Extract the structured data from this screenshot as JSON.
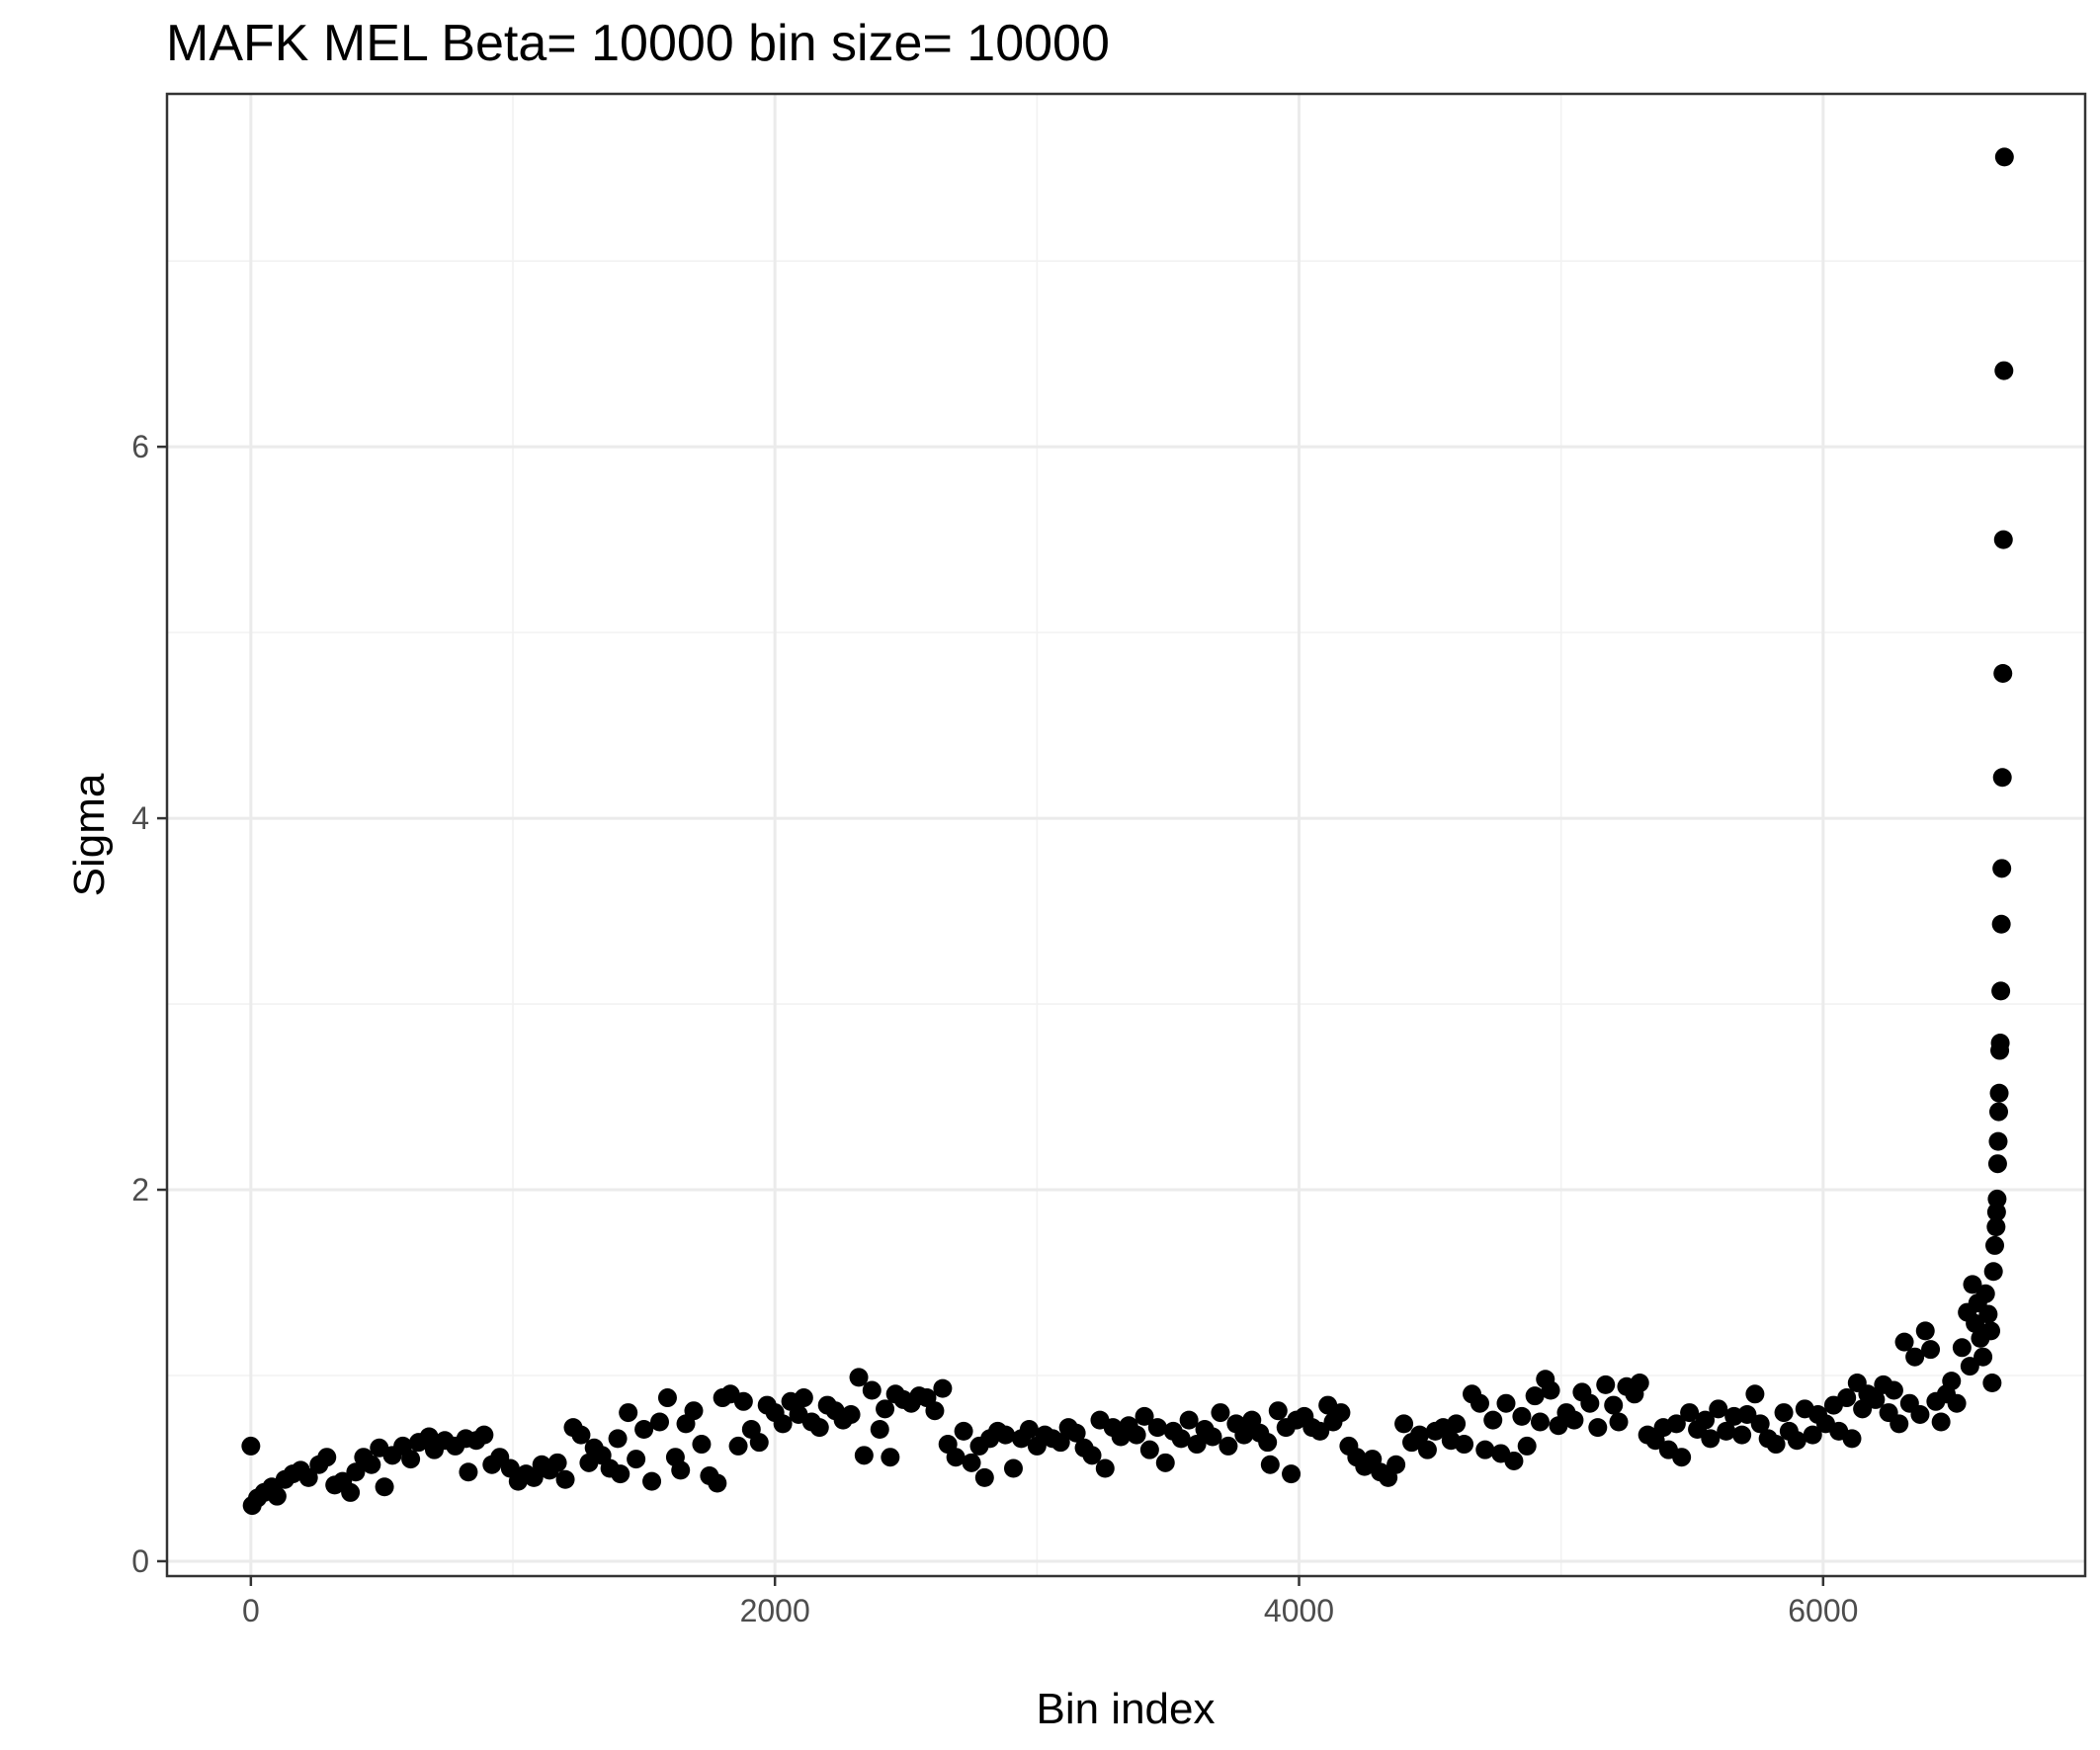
{
  "chart_data": {
    "type": "scatter",
    "title": "MAFK MEL  Beta=  10000  bin size=  10000",
    "xlabel": "Bin index",
    "ylabel": "Sigma",
    "xlim": [
      -320,
      7000
    ],
    "ylim": [
      -0.08,
      7.9
    ],
    "x_ticks": [
      0,
      2000,
      4000,
      6000
    ],
    "x_tick_labels": [
      "0",
      "2000",
      "4000",
      "6000"
    ],
    "y_ticks": [
      0,
      2,
      4,
      6
    ],
    "y_tick_labels": [
      "0",
      "2",
      "4",
      "6"
    ],
    "grid": true,
    "legend": "none",
    "point_color": "#000000",
    "series": [
      {
        "points": [
          [
            0,
            0.62
          ],
          [
            5,
            0.3
          ],
          [
            25,
            0.34
          ],
          [
            50,
            0.37
          ],
          [
            80,
            0.4
          ],
          [
            100,
            0.35
          ],
          [
            130,
            0.44
          ],
          [
            160,
            0.47
          ],
          [
            190,
            0.49
          ],
          [
            220,
            0.45
          ],
          [
            260,
            0.52
          ],
          [
            290,
            0.56
          ],
          [
            320,
            0.41
          ],
          [
            350,
            0.43
          ],
          [
            380,
            0.37
          ],
          [
            400,
            0.48
          ],
          [
            430,
            0.56
          ],
          [
            460,
            0.52
          ],
          [
            490,
            0.61
          ],
          [
            510,
            0.4
          ],
          [
            540,
            0.57
          ],
          [
            580,
            0.62
          ],
          [
            610,
            0.55
          ],
          [
            640,
            0.64
          ],
          [
            680,
            0.67
          ],
          [
            700,
            0.6
          ],
          [
            740,
            0.65
          ],
          [
            780,
            0.62
          ],
          [
            820,
            0.66
          ],
          [
            830,
            0.48
          ],
          [
            860,
            0.65
          ],
          [
            890,
            0.68
          ],
          [
            920,
            0.52
          ],
          [
            950,
            0.56
          ],
          [
            990,
            0.5
          ],
          [
            1020,
            0.43
          ],
          [
            1050,
            0.47
          ],
          [
            1080,
            0.45
          ],
          [
            1110,
            0.52
          ],
          [
            1140,
            0.49
          ],
          [
            1170,
            0.53
          ],
          [
            1200,
            0.44
          ],
          [
            1230,
            0.72
          ],
          [
            1260,
            0.68
          ],
          [
            1290,
            0.53
          ],
          [
            1310,
            0.61
          ],
          [
            1340,
            0.57
          ],
          [
            1370,
            0.5
          ],
          [
            1400,
            0.66
          ],
          [
            1410,
            0.47
          ],
          [
            1440,
            0.8
          ],
          [
            1470,
            0.55
          ],
          [
            1500,
            0.71
          ],
          [
            1530,
            0.43
          ],
          [
            1560,
            0.75
          ],
          [
            1590,
            0.88
          ],
          [
            1620,
            0.56
          ],
          [
            1640,
            0.49
          ],
          [
            1660,
            0.74
          ],
          [
            1690,
            0.81
          ],
          [
            1720,
            0.63
          ],
          [
            1750,
            0.46
          ],
          [
            1780,
            0.42
          ],
          [
            1800,
            0.88
          ],
          [
            1830,
            0.9
          ],
          [
            1860,
            0.62
          ],
          [
            1880,
            0.86
          ],
          [
            1910,
            0.71
          ],
          [
            1940,
            0.64
          ],
          [
            1970,
            0.84
          ],
          [
            2000,
            0.8
          ],
          [
            2030,
            0.74
          ],
          [
            2060,
            0.86
          ],
          [
            2090,
            0.79
          ],
          [
            2110,
            0.88
          ],
          [
            2140,
            0.75
          ],
          [
            2170,
            0.72
          ],
          [
            2200,
            0.84
          ],
          [
            2230,
            0.81
          ],
          [
            2260,
            0.76
          ],
          [
            2290,
            0.79
          ],
          [
            2320,
            0.99
          ],
          [
            2340,
            0.57
          ],
          [
            2370,
            0.92
          ],
          [
            2400,
            0.71
          ],
          [
            2420,
            0.82
          ],
          [
            2440,
            0.56
          ],
          [
            2460,
            0.9
          ],
          [
            2490,
            0.87
          ],
          [
            2520,
            0.85
          ],
          [
            2550,
            0.89
          ],
          [
            2580,
            0.88
          ],
          [
            2610,
            0.81
          ],
          [
            2640,
            0.93
          ],
          [
            2660,
            0.63
          ],
          [
            2690,
            0.56
          ],
          [
            2720,
            0.7
          ],
          [
            2750,
            0.53
          ],
          [
            2780,
            0.62
          ],
          [
            2800,
            0.45
          ],
          [
            2820,
            0.66
          ],
          [
            2850,
            0.7
          ],
          [
            2880,
            0.68
          ],
          [
            2910,
            0.5
          ],
          [
            2940,
            0.66
          ],
          [
            2970,
            0.71
          ],
          [
            3000,
            0.62
          ],
          [
            3030,
            0.68
          ],
          [
            3060,
            0.66
          ],
          [
            3090,
            0.64
          ],
          [
            3120,
            0.72
          ],
          [
            3150,
            0.69
          ],
          [
            3180,
            0.61
          ],
          [
            3210,
            0.57
          ],
          [
            3240,
            0.76
          ],
          [
            3260,
            0.5
          ],
          [
            3290,
            0.72
          ],
          [
            3320,
            0.67
          ],
          [
            3350,
            0.73
          ],
          [
            3380,
            0.68
          ],
          [
            3410,
            0.78
          ],
          [
            3430,
            0.6
          ],
          [
            3460,
            0.72
          ],
          [
            3490,
            0.53
          ],
          [
            3520,
            0.7
          ],
          [
            3550,
            0.66
          ],
          [
            3580,
            0.76
          ],
          [
            3610,
            0.63
          ],
          [
            3640,
            0.71
          ],
          [
            3670,
            0.67
          ],
          [
            3700,
            0.8
          ],
          [
            3730,
            0.62
          ],
          [
            3760,
            0.74
          ],
          [
            3790,
            0.68
          ],
          [
            3820,
            0.76
          ],
          [
            3850,
            0.69
          ],
          [
            3880,
            0.64
          ],
          [
            3890,
            0.52
          ],
          [
            3920,
            0.81
          ],
          [
            3950,
            0.72
          ],
          [
            3970,
            0.47
          ],
          [
            3990,
            0.76
          ],
          [
            4020,
            0.78
          ],
          [
            4050,
            0.72
          ],
          [
            4080,
            0.7
          ],
          [
            4110,
            0.84
          ],
          [
            4130,
            0.75
          ],
          [
            4160,
            0.8
          ],
          [
            4190,
            0.62
          ],
          [
            4220,
            0.56
          ],
          [
            4250,
            0.51
          ],
          [
            4280,
            0.55
          ],
          [
            4310,
            0.48
          ],
          [
            4340,
            0.45
          ],
          [
            4370,
            0.52
          ],
          [
            4400,
            0.74
          ],
          [
            4430,
            0.64
          ],
          [
            4460,
            0.68
          ],
          [
            4490,
            0.6
          ],
          [
            4520,
            0.7
          ],
          [
            4550,
            0.72
          ],
          [
            4580,
            0.65
          ],
          [
            4600,
            0.74
          ],
          [
            4630,
            0.63
          ],
          [
            4660,
            0.9
          ],
          [
            4690,
            0.85
          ],
          [
            4710,
            0.6
          ],
          [
            4740,
            0.76
          ],
          [
            4770,
            0.58
          ],
          [
            4790,
            0.85
          ],
          [
            4820,
            0.54
          ],
          [
            4850,
            0.78
          ],
          [
            4870,
            0.62
          ],
          [
            4900,
            0.89
          ],
          [
            4920,
            0.75
          ],
          [
            4940,
            0.98
          ],
          [
            4960,
            0.92
          ],
          [
            4990,
            0.73
          ],
          [
            5020,
            0.8
          ],
          [
            5050,
            0.76
          ],
          [
            5080,
            0.91
          ],
          [
            5110,
            0.85
          ],
          [
            5140,
            0.72
          ],
          [
            5170,
            0.95
          ],
          [
            5200,
            0.84
          ],
          [
            5220,
            0.75
          ],
          [
            5250,
            0.94
          ],
          [
            5280,
            0.9
          ],
          [
            5300,
            0.96
          ],
          [
            5330,
            0.68
          ],
          [
            5360,
            0.65
          ],
          [
            5390,
            0.72
          ],
          [
            5410,
            0.6
          ],
          [
            5440,
            0.74
          ],
          [
            5460,
            0.56
          ],
          [
            5490,
            0.8
          ],
          [
            5520,
            0.71
          ],
          [
            5550,
            0.76
          ],
          [
            5570,
            0.66
          ],
          [
            5600,
            0.82
          ],
          [
            5630,
            0.7
          ],
          [
            5660,
            0.78
          ],
          [
            5690,
            0.68
          ],
          [
            5710,
            0.79
          ],
          [
            5740,
            0.9
          ],
          [
            5760,
            0.74
          ],
          [
            5790,
            0.66
          ],
          [
            5820,
            0.63
          ],
          [
            5850,
            0.8
          ],
          [
            5870,
            0.7
          ],
          [
            5900,
            0.65
          ],
          [
            5930,
            0.82
          ],
          [
            5960,
            0.68
          ],
          [
            5980,
            0.79
          ],
          [
            6010,
            0.74
          ],
          [
            6040,
            0.84
          ],
          [
            6060,
            0.7
          ],
          [
            6090,
            0.88
          ],
          [
            6110,
            0.66
          ],
          [
            6130,
            0.96
          ],
          [
            6150,
            0.82
          ],
          [
            6170,
            0.9
          ],
          [
            6200,
            0.87
          ],
          [
            6230,
            0.95
          ],
          [
            6250,
            0.8
          ],
          [
            6270,
            0.92
          ],
          [
            6290,
            0.74
          ],
          [
            6310,
            1.18
          ],
          [
            6330,
            0.85
          ],
          [
            6350,
            1.1
          ],
          [
            6370,
            0.79
          ],
          [
            6390,
            1.24
          ],
          [
            6410,
            1.14
          ],
          [
            6430,
            0.86
          ],
          [
            6450,
            0.75
          ],
          [
            6470,
            0.9
          ],
          [
            6490,
            0.97
          ],
          [
            6510,
            0.85
          ],
          [
            6530,
            1.15
          ],
          [
            6550,
            1.34
          ],
          [
            6560,
            1.05
          ],
          [
            6570,
            1.49
          ],
          [
            6580,
            1.28
          ],
          [
            6590,
            1.39
          ],
          [
            6600,
            1.2
          ],
          [
            6610,
            1.1
          ],
          [
            6620,
            1.44
          ],
          [
            6630,
            1.33
          ],
          [
            6640,
            1.24
          ],
          [
            6645,
            0.96
          ],
          [
            6650,
            1.56
          ],
          [
            6655,
            1.7
          ],
          [
            6660,
            1.8
          ],
          [
            6662,
            1.88
          ],
          [
            6664,
            1.95
          ],
          [
            6666,
            2.14
          ],
          [
            6668,
            2.26
          ],
          [
            6670,
            2.42
          ],
          [
            6672,
            2.52
          ],
          [
            6674,
            2.75
          ],
          [
            6676,
            2.79
          ],
          [
            6678,
            3.07
          ],
          [
            6680,
            3.43
          ],
          [
            6682,
            3.73
          ],
          [
            6684,
            4.22
          ],
          [
            6686,
            4.78
          ],
          [
            6688,
            5.5
          ],
          [
            6690,
            6.41
          ],
          [
            6692,
            7.56
          ]
        ]
      }
    ]
  }
}
